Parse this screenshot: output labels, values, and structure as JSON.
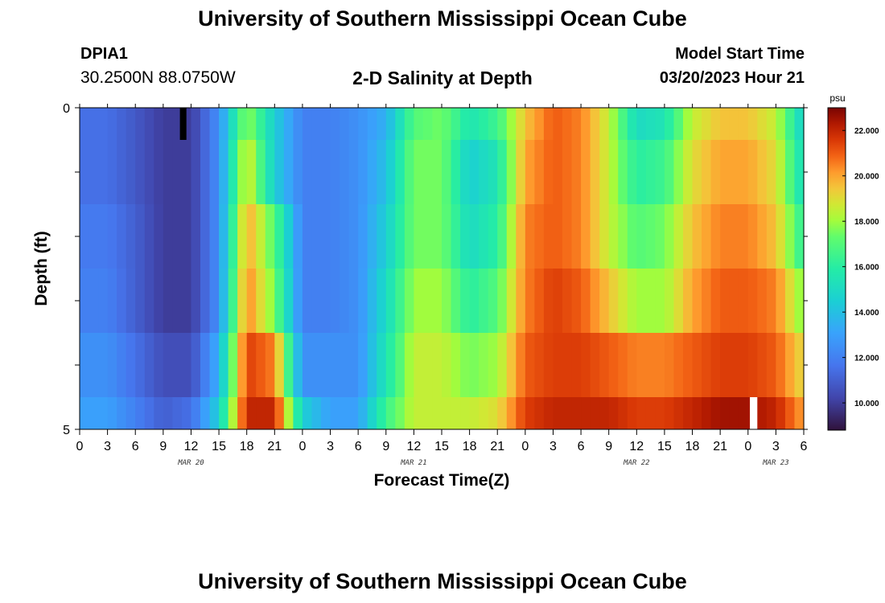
{
  "page": {
    "title": "University of Southern Mississippi Ocean Cube",
    "bottom_title": "University of Southern Mississippi Ocean Cube",
    "station_id": "DPIA1",
    "station_coords": "30.2500N  88.0750W",
    "model_start_label": "Model Start Time",
    "model_start_value": "03/20/2023 Hour 21"
  },
  "chart_data": {
    "type": "heatmap",
    "title": "2-D Salinity at Depth",
    "xlabel": "Forecast Time(Z)",
    "ylabel": "Depth (ft)",
    "units": "psu",
    "x_range_hours": [
      0,
      78
    ],
    "y_range": [
      0,
      5
    ],
    "x_tick_labels": [
      "0",
      "3",
      "6",
      "9",
      "12",
      "15",
      "18",
      "21",
      "0",
      "3",
      "6",
      "9",
      "12",
      "15",
      "18",
      "21",
      "0",
      "3",
      "6",
      "9",
      "12",
      "15",
      "18",
      "21",
      "0",
      "3",
      "6"
    ],
    "x_tick_hours": [
      0,
      3,
      6,
      9,
      12,
      15,
      18,
      21,
      24,
      27,
      30,
      33,
      36,
      39,
      42,
      45,
      48,
      51,
      54,
      57,
      60,
      63,
      66,
      69,
      72,
      75,
      78
    ],
    "day_labels": [
      {
        "label": "MAR 20",
        "hour": 12
      },
      {
        "label": "MAR 21",
        "hour": 36
      },
      {
        "label": "MAR 22",
        "hour": 60
      },
      {
        "label": "MAR 23",
        "hour": 75
      }
    ],
    "y_tick_labels": [
      "0",
      "5"
    ],
    "y_tick_values": [
      0,
      5
    ],
    "colorbar": {
      "min": 8.8,
      "max": 23.0,
      "ticks": [
        22.0,
        20.0,
        18.0,
        16.0,
        14.0,
        12.0,
        10.0
      ],
      "tick_labels": [
        "22.000",
        "20.000",
        "18.000",
        "16.000",
        "14.000",
        "12.000",
        "10.000"
      ],
      "colormap": "turbo"
    },
    "depth_bands": [
      {
        "from": 0.0,
        "to": 0.5
      },
      {
        "from": 0.5,
        "to": 1.5
      },
      {
        "from": 1.5,
        "to": 2.5
      },
      {
        "from": 2.5,
        "to": 3.5
      },
      {
        "from": 3.5,
        "to": 4.5
      },
      {
        "from": 4.5,
        "to": 5.0
      }
    ],
    "time_hours": [
      0,
      3,
      6,
      9,
      12,
      15,
      18,
      21,
      24,
      27,
      30,
      33,
      36,
      39,
      42,
      45,
      48,
      51,
      54,
      57,
      60,
      63,
      66,
      69,
      72,
      75,
      78
    ],
    "salinity_profiles": [
      [
        11.5,
        11.5,
        10.8,
        10.0,
        10.0,
        12.5,
        18.0,
        14.5,
        12.0,
        12.0,
        12.5,
        13.5,
        17.0,
        17.5,
        15.5,
        16.5,
        19.5,
        21.0,
        20.5,
        18.5,
        15.0,
        15.5,
        18.5,
        19.5,
        19.5,
        18.5,
        14.5
      ],
      [
        11.5,
        11.5,
        10.8,
        10.0,
        10.0,
        12.5,
        19.0,
        14.5,
        12.0,
        12.0,
        12.5,
        14.0,
        17.5,
        17.5,
        14.5,
        15.5,
        20.0,
        21.0,
        20.5,
        18.5,
        16.0,
        16.5,
        19.0,
        20.0,
        20.0,
        19.0,
        15.0
      ],
      [
        11.8,
        11.8,
        11.0,
        10.0,
        10.0,
        12.5,
        20.0,
        17.0,
        12.0,
        12.0,
        12.5,
        14.5,
        17.5,
        17.5,
        15.0,
        16.0,
        20.5,
        21.0,
        20.5,
        18.5,
        17.0,
        17.5,
        19.5,
        20.5,
        20.5,
        19.5,
        16.0
      ],
      [
        12.0,
        12.0,
        11.0,
        10.0,
        10.0,
        12.5,
        20.5,
        17.5,
        12.0,
        12.0,
        12.5,
        15.0,
        18.0,
        18.0,
        16.0,
        17.0,
        20.5,
        21.5,
        21.0,
        19.5,
        18.0,
        18.0,
        20.0,
        21.0,
        21.0,
        20.5,
        17.5
      ],
      [
        12.5,
        12.5,
        11.5,
        10.5,
        10.5,
        13.5,
        21.5,
        20.5,
        12.5,
        12.5,
        12.5,
        15.5,
        18.5,
        18.5,
        17.5,
        18.0,
        21.0,
        21.5,
        21.5,
        21.0,
        20.5,
        20.5,
        21.0,
        21.5,
        21.5,
        21.0,
        19.0
      ],
      [
        13.0,
        13.0,
        12.0,
        11.0,
        11.5,
        14.5,
        22.0,
        22.0,
        14.5,
        13.0,
        13.0,
        16.5,
        18.5,
        18.5,
        18.5,
        19.0,
        21.5,
        22.0,
        22.0,
        22.0,
        21.5,
        21.5,
        22.0,
        22.5,
        22.5,
        22.0,
        20.0
      ]
    ],
    "gaps": [
      {
        "hour_start": 10.8,
        "hour_end": 11.5,
        "depth_from": 0.0,
        "depth_to": 0.5,
        "color": "#000000"
      },
      {
        "hour_start": 72.2,
        "hour_end": 73.0,
        "depth_from": 4.5,
        "depth_to": 5.0,
        "color": "#ffffff"
      }
    ],
    "grid": false
  }
}
